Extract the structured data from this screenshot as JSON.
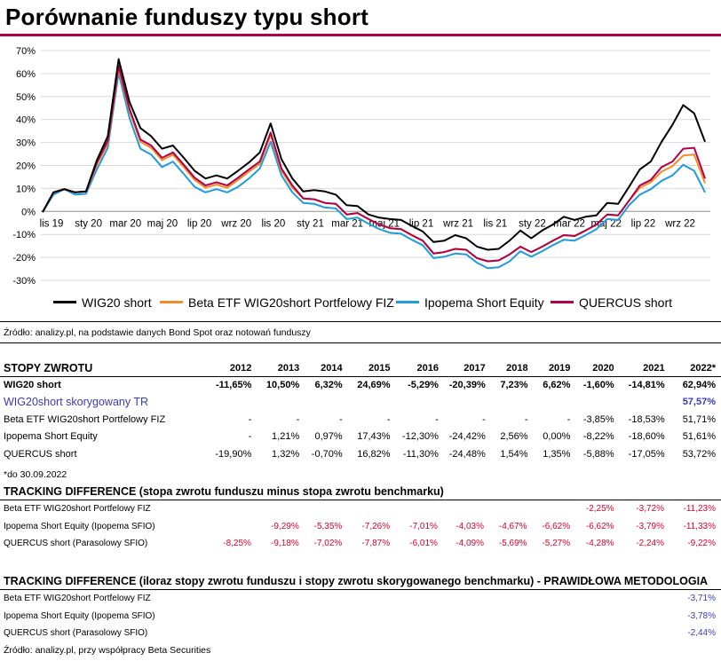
{
  "title": "Porównanie funduszy typu short",
  "colors": {
    "wig20": "#000000",
    "beta": "#f28c28",
    "ipopema": "#1f9bde",
    "quercus": "#b0004a",
    "accent": "#b0004a"
  },
  "chart_data": {
    "type": "line",
    "title": "",
    "xlabel": "",
    "ylabel": "",
    "ylim": [
      -30,
      70
    ],
    "y_ticks": [
      "70%",
      "60%",
      "50%",
      "40%",
      "30%",
      "20%",
      "10%",
      "0%",
      "-10%",
      "-20%",
      "-30%"
    ],
    "x_ticks": [
      "lis 19",
      "sty 20",
      "mar 20",
      "maj 20",
      "lip 20",
      "wrz 20",
      "lis 20",
      "sty 21",
      "mar 21",
      "maj 21",
      "lip 21",
      "wrz 21",
      "lis 21",
      "sty 22",
      "mar 22",
      "maj 22",
      "lip 22",
      "wrz 22"
    ],
    "grid": true,
    "legend_position": "bottom",
    "series": [
      {
        "name": "WIG20 short",
        "values": [
          0,
          8,
          10,
          8,
          9,
          22,
          33,
          66,
          48,
          36,
          33,
          27,
          29,
          23,
          18,
          14,
          16,
          14,
          18,
          21,
          26,
          38,
          23,
          14,
          9,
          9,
          9,
          7,
          3,
          2,
          -1,
          -3,
          -3,
          -4,
          -6,
          -9,
          -13,
          -13,
          -10,
          -12,
          -15,
          -17,
          -16,
          -13,
          -8,
          -12,
          -8,
          -6,
          -2,
          -4,
          -2,
          -2,
          4,
          3,
          11,
          18,
          22,
          30,
          38,
          46,
          43,
          30
        ]
      },
      {
        "name": "Beta ETF WIG20short Portfelowy FIZ",
        "values": [
          0,
          8,
          10,
          8,
          9,
          20,
          30,
          62,
          44,
          30,
          28,
          22,
          25,
          19,
          14,
          10,
          12,
          10,
          14,
          17,
          21,
          33,
          18,
          10,
          6,
          5,
          4,
          3,
          -1,
          -1,
          -3,
          -6,
          -7,
          -8,
          -10,
          -13,
          -18,
          -18,
          -16,
          -17,
          -20,
          -22,
          -21,
          -19,
          -15,
          -18,
          -15,
          -13,
          -10,
          -11,
          -8,
          -6,
          -1,
          -2,
          5,
          10,
          13,
          17,
          20,
          24,
          25,
          12
        ]
      },
      {
        "name": "Ipopema Short Equity",
        "values": [
          0,
          7,
          10,
          7,
          8,
          18,
          28,
          60,
          41,
          27,
          25,
          19,
          22,
          16,
          11,
          8,
          10,
          8,
          11,
          14,
          19,
          30,
          16,
          8,
          4,
          3,
          2,
          1,
          -3,
          -3,
          -5,
          -8,
          -9,
          -10,
          -12,
          -15,
          -20,
          -20,
          -18,
          -19,
          -22,
          -25,
          -24,
          -22,
          -17,
          -20,
          -17,
          -15,
          -12,
          -13,
          -10,
          -8,
          -3,
          -4,
          3,
          7,
          10,
          13,
          16,
          20,
          18,
          8
        ]
      },
      {
        "name": "QUERCUS short",
        "values": [
          0,
          8,
          10,
          8,
          9,
          21,
          31,
          63,
          45,
          31,
          29,
          23,
          26,
          20,
          15,
          11,
          13,
          11,
          15,
          18,
          22,
          34,
          19,
          11,
          6,
          5,
          4,
          3,
          -1,
          -1,
          -3,
          -6,
          -7,
          -8,
          -10,
          -13,
          -18,
          -18,
          -16,
          -17,
          -20,
          -22,
          -21,
          -19,
          -15,
          -18,
          -15,
          -13,
          -10,
          -11,
          -8,
          -6,
          -1,
          -2,
          5,
          11,
          14,
          19,
          22,
          27,
          28,
          14
        ]
      }
    ]
  },
  "source_top": "Źródło: analizy.pl, na podstawie danych Bond Spot oraz notowań funduszy",
  "returns": {
    "header": [
      "STOPY ZWROTU",
      "2012",
      "2013",
      "2014",
      "2015",
      "2016",
      "2017",
      "2018",
      "2019",
      "2020",
      "2021",
      "2022*"
    ],
    "rows": [
      {
        "name": "WIG20 short",
        "vals": [
          "-11,65%",
          "10,50%",
          "6,32%",
          "24,69%",
          "-5,29%",
          "-20,39%",
          "7,23%",
          "6,62%",
          "-1,60%",
          "-14,81%",
          "62,94%"
        ]
      },
      {
        "name": "WIG20short skorygowany TR",
        "vals": [
          "",
          "",
          "",
          "",
          "",
          "",
          "",
          "",
          "",
          "",
          "57,57%"
        ]
      },
      {
        "name": "Beta ETF WIG20short Portfelowy FIZ",
        "vals": [
          "-",
          "-",
          "-",
          "-",
          "-",
          "-",
          "-",
          "-",
          "-3,85%",
          "-18,53%",
          "51,71%"
        ]
      },
      {
        "name": "Ipopema Short Equity",
        "vals": [
          "-",
          "1,21%",
          "0,97%",
          "17,43%",
          "-12,30%",
          "-24,42%",
          "2,56%",
          "0,00%",
          "-8,22%",
          "-18,60%",
          "51,61%"
        ]
      },
      {
        "name": "QUERCUS short",
        "vals": [
          "-19,90%",
          "1,32%",
          "-0,70%",
          "16,82%",
          "-11,30%",
          "-24,48%",
          "1,54%",
          "1,35%",
          "-5,88%",
          "-17,05%",
          "53,72%"
        ]
      }
    ],
    "note": "*do 30.09.2022"
  },
  "td1": {
    "title": "TRACKING DIFFERENCE (stopa zwrotu funduszu minus stopa zwrotu benchmarku)",
    "rows": [
      {
        "name": "Beta ETF WIG20short Portfelowy FIZ",
        "vals": [
          "",
          "",
          "",
          "",
          "",
          "",
          "",
          "",
          "-2,25%",
          "-3,72%",
          "-11,23%"
        ]
      },
      {
        "name": "Ipopema Short Equity (Ipopema SFIO)",
        "vals": [
          "",
          "-9,29%",
          "-5,35%",
          "-7,26%",
          "-7,01%",
          "-4,03%",
          "-4,67%",
          "-6,62%",
          "-6,62%",
          "-3,79%",
          "-11,33%"
        ]
      },
      {
        "name": "QUERCUS short (Parasolowy SFIO)",
        "vals": [
          "-8,25%",
          "-9,18%",
          "-7,02%",
          "-7,87%",
          "-6,01%",
          "-4,09%",
          "-5,69%",
          "-5,27%",
          "-4,28%",
          "-2,24%",
          "-9,22%"
        ]
      }
    ]
  },
  "td2": {
    "title": "TRACKING DIFFERENCE (iloraz stopy zwrotu funduszu i stopy zwrotu skorygowanego benchmarku) - PRAWIDŁOWA METODOLOGIA",
    "rows": [
      {
        "name": "Beta ETF WIG20short Portfelowy FIZ",
        "val": "-3,71%"
      },
      {
        "name": "Ipopema Short Equity (Ipopema SFIO)",
        "val": "-3,78%"
      },
      {
        "name": "QUERCUS short (Parasolowy SFIO)",
        "val": "-2,44%"
      }
    ]
  },
  "source_bottom": "Źródło: analizy.pl, przy współpracy Beta Securities"
}
